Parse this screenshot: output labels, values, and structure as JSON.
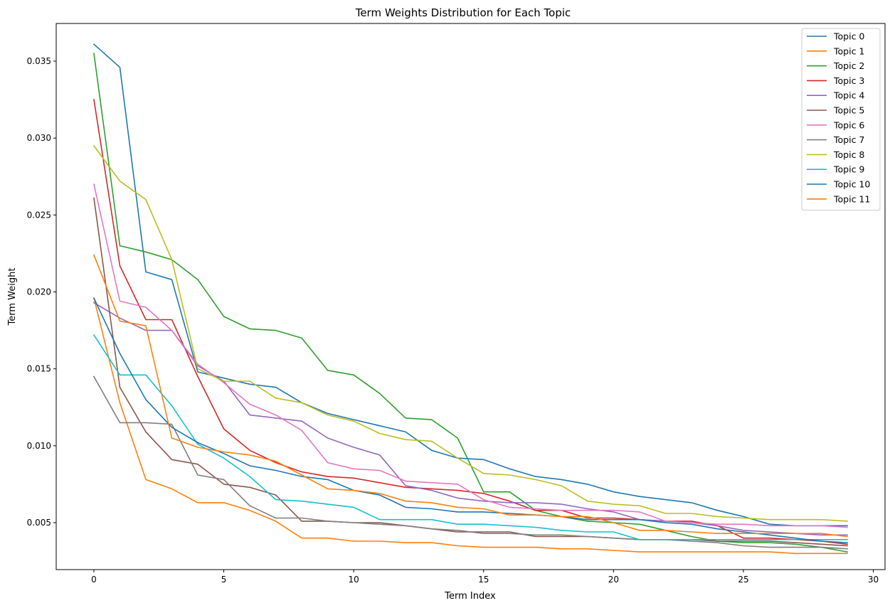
{
  "chart_data": {
    "type": "line",
    "title": "Term Weights Distribution for Each Topic",
    "xlabel": "Term Index",
    "ylabel": "Term Weight",
    "xlim": [
      -1.45,
      30.45
    ],
    "ylim": [
      0.00195,
      0.03745
    ],
    "xticks": [
      0,
      5,
      10,
      15,
      20,
      25,
      30
    ],
    "yticks": [
      0.005,
      0.01,
      0.015,
      0.02,
      0.025,
      0.03,
      0.035
    ],
    "ytick_labels": [
      "0.005",
      "0.010",
      "0.015",
      "0.020",
      "0.025",
      "0.030",
      "0.035"
    ],
    "grid": false,
    "legend_position": "top-right",
    "x": [
      0,
      1,
      2,
      3,
      4,
      5,
      6,
      7,
      8,
      9,
      10,
      11,
      12,
      13,
      14,
      15,
      16,
      17,
      18,
      19,
      20,
      21,
      22,
      23,
      24,
      25,
      26,
      27,
      28,
      29
    ],
    "series": [
      {
        "name": "Topic 0",
        "color": "#1f77b4",
        "values": [
          0.0361,
          0.0346,
          0.0213,
          0.0208,
          0.0148,
          0.0144,
          0.014,
          0.0138,
          0.0128,
          0.0121,
          0.0117,
          0.0113,
          0.0109,
          0.0097,
          0.0092,
          0.0091,
          0.0085,
          0.008,
          0.0078,
          0.0075,
          0.007,
          0.0067,
          0.0065,
          0.0063,
          0.0058,
          0.0054,
          0.0049,
          0.0048,
          0.0048,
          0.0048
        ]
      },
      {
        "name": "Topic 1",
        "color": "#ff7f0e",
        "values": [
          0.0196,
          0.0128,
          0.0078,
          0.0072,
          0.0063,
          0.0063,
          0.0058,
          0.0051,
          0.004,
          0.004,
          0.0038,
          0.0038,
          0.0037,
          0.0037,
          0.0035,
          0.0034,
          0.0034,
          0.0034,
          0.0033,
          0.0033,
          0.0032,
          0.0031,
          0.0031,
          0.0031,
          0.0031,
          0.0031,
          0.0031,
          0.003,
          0.003,
          0.003
        ]
      },
      {
        "name": "Topic 2",
        "color": "#2ca02c",
        "values": [
          0.0355,
          0.023,
          0.0226,
          0.0221,
          0.0208,
          0.0184,
          0.0176,
          0.0175,
          0.017,
          0.0149,
          0.0146,
          0.0134,
          0.0118,
          0.0117,
          0.0105,
          0.007,
          0.007,
          0.0058,
          0.0054,
          0.0051,
          0.005,
          0.0049,
          0.0045,
          0.0041,
          0.0038,
          0.0037,
          0.0037,
          0.0036,
          0.0034,
          0.0031
        ]
      },
      {
        "name": "Topic 3",
        "color": "#d62728",
        "values": [
          0.0325,
          0.0217,
          0.0182,
          0.0182,
          0.0145,
          0.0111,
          0.0097,
          0.0089,
          0.0083,
          0.008,
          0.0079,
          0.0076,
          0.0073,
          0.0072,
          0.0071,
          0.0069,
          0.0064,
          0.0058,
          0.0058,
          0.0053,
          0.0053,
          0.0052,
          0.0051,
          0.0051,
          0.0048,
          0.004,
          0.004,
          0.0039,
          0.0038,
          0.0036
        ]
      },
      {
        "name": "Topic 4",
        "color": "#9467bd",
        "values": [
          0.0193,
          0.0183,
          0.0175,
          0.0175,
          0.0152,
          0.0142,
          0.012,
          0.0118,
          0.0116,
          0.0105,
          0.0099,
          0.0094,
          0.0074,
          0.0071,
          0.0066,
          0.0064,
          0.0063,
          0.0063,
          0.0062,
          0.0059,
          0.0057,
          0.0052,
          0.0051,
          0.005,
          0.0048,
          0.0045,
          0.0044,
          0.0043,
          0.0042,
          0.0042
        ]
      },
      {
        "name": "Topic 5",
        "color": "#8c564b",
        "values": [
          0.0261,
          0.0138,
          0.0109,
          0.0091,
          0.0088,
          0.0075,
          0.0073,
          0.0068,
          0.0051,
          0.0051,
          0.005,
          0.005,
          0.0048,
          0.0046,
          0.0044,
          0.0044,
          0.0044,
          0.0041,
          0.0041,
          0.0041,
          0.004,
          0.0039,
          0.0039,
          0.0039,
          0.0038,
          0.0038,
          0.0038,
          0.0037,
          0.0036,
          0.0035
        ]
      },
      {
        "name": "Topic 6",
        "color": "#e377c2",
        "values": [
          0.027,
          0.0194,
          0.019,
          0.0175,
          0.0153,
          0.0141,
          0.0127,
          0.012,
          0.011,
          0.0089,
          0.0085,
          0.0084,
          0.0077,
          0.0076,
          0.0075,
          0.0065,
          0.006,
          0.0059,
          0.0058,
          0.0058,
          0.0058,
          0.0057,
          0.0051,
          0.005,
          0.0049,
          0.0049,
          0.0048,
          0.0048,
          0.0048,
          0.0047
        ]
      },
      {
        "name": "Topic 7",
        "color": "#7f7f7f",
        "values": [
          0.0145,
          0.0115,
          0.0115,
          0.0114,
          0.0081,
          0.0078,
          0.0061,
          0.0053,
          0.0053,
          0.0051,
          0.005,
          0.0049,
          0.0048,
          0.0046,
          0.0045,
          0.0043,
          0.0043,
          0.0042,
          0.0042,
          0.0041,
          0.004,
          0.0039,
          0.0039,
          0.0038,
          0.0037,
          0.0035,
          0.0034,
          0.0034,
          0.0034,
          0.0033
        ]
      },
      {
        "name": "Topic 8",
        "color": "#bcbd22",
        "values": [
          0.0295,
          0.0272,
          0.026,
          0.0221,
          0.015,
          0.0142,
          0.0142,
          0.0131,
          0.0128,
          0.012,
          0.0116,
          0.0108,
          0.0104,
          0.0103,
          0.0092,
          0.0082,
          0.0081,
          0.0078,
          0.0074,
          0.0064,
          0.0062,
          0.0061,
          0.0056,
          0.0056,
          0.0054,
          0.0053,
          0.0052,
          0.0052,
          0.0052,
          0.0051
        ]
      },
      {
        "name": "Topic 9",
        "color": "#17becf",
        "values": [
          0.0172,
          0.0146,
          0.0146,
          0.0126,
          0.0101,
          0.0092,
          0.008,
          0.0065,
          0.0064,
          0.0062,
          0.006,
          0.0052,
          0.0052,
          0.0052,
          0.0049,
          0.0049,
          0.0048,
          0.0047,
          0.0045,
          0.0044,
          0.0044,
          0.0039,
          0.0039,
          0.0039,
          0.0039,
          0.0039,
          0.0039,
          0.0039,
          0.0039,
          0.0039
        ]
      },
      {
        "name": "Topic 10",
        "color": "#1f77b4",
        "values": [
          0.0196,
          0.016,
          0.013,
          0.0112,
          0.0102,
          0.0095,
          0.0087,
          0.0084,
          0.008,
          0.0078,
          0.0071,
          0.0068,
          0.006,
          0.0059,
          0.0057,
          0.0057,
          0.0056,
          0.0055,
          0.0054,
          0.0052,
          0.0052,
          0.0052,
          0.005,
          0.0049,
          0.0046,
          0.0044,
          0.0042,
          0.004,
          0.0038,
          0.0037
        ]
      },
      {
        "name": "Topic 11",
        "color": "#ff7f0e",
        "values": [
          0.0224,
          0.0181,
          0.0178,
          0.0105,
          0.0099,
          0.0096,
          0.0094,
          0.009,
          0.0081,
          0.0072,
          0.0071,
          0.0069,
          0.0064,
          0.0063,
          0.006,
          0.0059,
          0.0055,
          0.0055,
          0.0054,
          0.0054,
          0.005,
          0.0045,
          0.0045,
          0.0044,
          0.0043,
          0.0043,
          0.0043,
          0.0043,
          0.0043,
          0.0041
        ]
      }
    ]
  }
}
